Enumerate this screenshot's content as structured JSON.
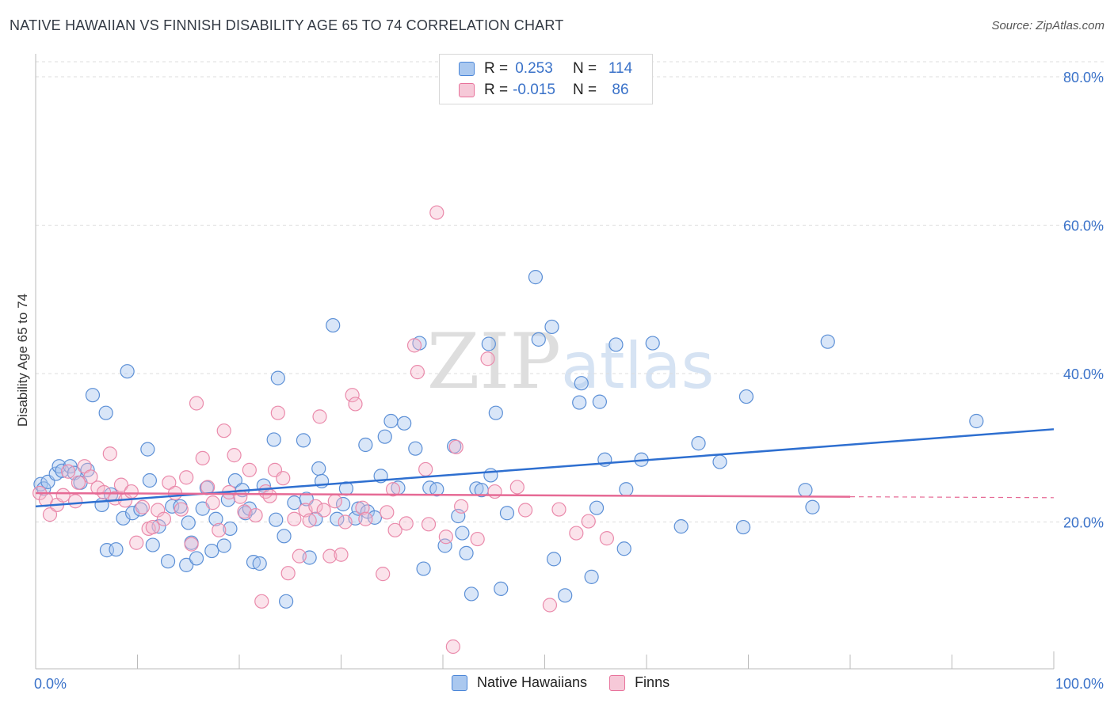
{
  "title": "NATIVE HAWAIIAN VS FINNISH DISABILITY AGE 65 TO 74 CORRELATION CHART",
  "source": "Source: ZipAtlas.com",
  "colors": {
    "blue": "#4a86d8",
    "blue_fill": "#aac8ef",
    "pink": "#e8729b",
    "pink_fill": "#f6b9cd",
    "axis_text": "#3a72c9"
  },
  "legend": {
    "row1": {
      "r_label": "R =",
      "r_value": "0.253",
      "n_label": "N =",
      "n_value": "114"
    },
    "row2": {
      "r_label": "R =",
      "r_value": "-0.015",
      "n_label": "N =",
      "n_value": "86"
    }
  },
  "bottom_legend": {
    "series1": "Native Hawaiians",
    "series2": "Finns"
  },
  "chart_data": {
    "type": "scatter",
    "title": "NATIVE HAWAIIAN VS FINNISH DISABILITY AGE 65 TO 74 CORRELATION CHART",
    "xlabel": "",
    "ylabel": "Disability Age 65 to 74",
    "xlim": [
      0,
      100
    ],
    "ylim": [
      0,
      80
    ],
    "x_tick_labels": [
      "0.0%",
      "100.0%"
    ],
    "y_ticks": [
      20,
      40,
      60,
      80
    ],
    "y_tick_labels": [
      "20.0%",
      "40.0%",
      "60.0%",
      "80.0%"
    ],
    "grid": true,
    "watermark": "ZIPatlas",
    "series": [
      {
        "name": "Native Hawaiians",
        "color": "#4a86d8",
        "trend": {
          "x": [
            0,
            100
          ],
          "y": [
            22.1,
            32.5
          ]
        },
        "points": [
          [
            0.5,
            25.1
          ],
          [
            0.8,
            24.5
          ],
          [
            1.2,
            25.4
          ],
          [
            2.0,
            26.5
          ],
          [
            2.3,
            27.5
          ],
          [
            2.6,
            26.9
          ],
          [
            3.4,
            27.5
          ],
          [
            3.8,
            26.6
          ],
          [
            4.4,
            25.3
          ],
          [
            5.1,
            27.0
          ],
          [
            5.6,
            37.1
          ],
          [
            6.5,
            22.3
          ],
          [
            6.9,
            34.7
          ],
          [
            7.0,
            16.2
          ],
          [
            7.4,
            23.7
          ],
          [
            7.9,
            16.3
          ],
          [
            8.6,
            20.5
          ],
          [
            9.0,
            40.3
          ],
          [
            9.5,
            21.2
          ],
          [
            10.3,
            21.7
          ],
          [
            11.0,
            29.8
          ],
          [
            11.2,
            25.6
          ],
          [
            11.5,
            16.9
          ],
          [
            12.1,
            19.4
          ],
          [
            13.0,
            14.7
          ],
          [
            13.4,
            22.1
          ],
          [
            14.2,
            22.1
          ],
          [
            14.8,
            14.2
          ],
          [
            15.0,
            19.9
          ],
          [
            15.3,
            17.2
          ],
          [
            15.8,
            15.1
          ],
          [
            16.4,
            21.8
          ],
          [
            16.8,
            24.6
          ],
          [
            17.3,
            16.1
          ],
          [
            17.7,
            20.4
          ],
          [
            18.5,
            16.8
          ],
          [
            18.9,
            23.0
          ],
          [
            19.1,
            19.1
          ],
          [
            19.6,
            25.6
          ],
          [
            20.3,
            24.3
          ],
          [
            20.6,
            21.2
          ],
          [
            21.0,
            21.8
          ],
          [
            21.4,
            14.6
          ],
          [
            22.0,
            14.4
          ],
          [
            22.4,
            24.9
          ],
          [
            23.4,
            31.1
          ],
          [
            23.6,
            20.3
          ],
          [
            23.8,
            39.4
          ],
          [
            24.4,
            18.1
          ],
          [
            24.6,
            9.3
          ],
          [
            25.4,
            22.6
          ],
          [
            26.3,
            31.0
          ],
          [
            26.6,
            23.1
          ],
          [
            26.9,
            15.2
          ],
          [
            27.5,
            20.4
          ],
          [
            27.8,
            27.2
          ],
          [
            28.1,
            25.5
          ],
          [
            29.2,
            46.5
          ],
          [
            29.6,
            20.4
          ],
          [
            30.2,
            22.4
          ],
          [
            30.5,
            24.5
          ],
          [
            31.4,
            20.5
          ],
          [
            31.7,
            21.8
          ],
          [
            32.4,
            30.4
          ],
          [
            32.6,
            21.4
          ],
          [
            33.3,
            20.6
          ],
          [
            33.9,
            26.2
          ],
          [
            34.3,
            31.5
          ],
          [
            34.9,
            33.6
          ],
          [
            35.6,
            24.6
          ],
          [
            36.2,
            33.3
          ],
          [
            37.3,
            29.9
          ],
          [
            37.7,
            44.1
          ],
          [
            38.1,
            13.7
          ],
          [
            38.7,
            24.6
          ],
          [
            39.4,
            24.4
          ],
          [
            40.2,
            16.8
          ],
          [
            41.1,
            30.2
          ],
          [
            41.5,
            20.8
          ],
          [
            41.9,
            18.5
          ],
          [
            42.3,
            15.8
          ],
          [
            42.8,
            10.3
          ],
          [
            43.3,
            24.5
          ],
          [
            43.8,
            24.3
          ],
          [
            44.5,
            44.0
          ],
          [
            44.7,
            26.3
          ],
          [
            45.2,
            34.7
          ],
          [
            45.7,
            11.0
          ],
          [
            46.3,
            21.2
          ],
          [
            49.1,
            53.0
          ],
          [
            49.4,
            44.6
          ],
          [
            50.7,
            46.3
          ],
          [
            50.9,
            15.0
          ],
          [
            52.0,
            10.1
          ],
          [
            53.4,
            36.1
          ],
          [
            53.6,
            38.7
          ],
          [
            54.6,
            12.6
          ],
          [
            55.1,
            21.9
          ],
          [
            55.4,
            36.2
          ],
          [
            55.9,
            28.4
          ],
          [
            57.0,
            43.9
          ],
          [
            57.8,
            16.4
          ],
          [
            58.0,
            24.4
          ],
          [
            59.5,
            28.4
          ],
          [
            60.6,
            44.1
          ],
          [
            63.4,
            19.4
          ],
          [
            65.1,
            30.6
          ],
          [
            67.2,
            28.1
          ],
          [
            69.5,
            19.3
          ],
          [
            69.8,
            36.9
          ],
          [
            75.6,
            24.3
          ],
          [
            76.3,
            22.0
          ],
          [
            77.8,
            44.3
          ],
          [
            92.4,
            33.6
          ]
        ]
      },
      {
        "name": "Finns",
        "color": "#e8729b",
        "trend": {
          "x": [
            0,
            80
          ],
          "y": [
            23.9,
            23.4
          ]
        },
        "points": [
          [
            0.4,
            23.9
          ],
          [
            1.0,
            23.0
          ],
          [
            1.4,
            21.0
          ],
          [
            2.1,
            22.3
          ],
          [
            2.7,
            23.6
          ],
          [
            3.2,
            26.8
          ],
          [
            3.9,
            22.8
          ],
          [
            4.2,
            25.3
          ],
          [
            4.8,
            27.5
          ],
          [
            5.4,
            26.1
          ],
          [
            6.1,
            24.6
          ],
          [
            6.7,
            24.0
          ],
          [
            7.3,
            29.2
          ],
          [
            7.8,
            23.2
          ],
          [
            8.4,
            25.0
          ],
          [
            8.8,
            22.9
          ],
          [
            9.4,
            24.1
          ],
          [
            9.9,
            17.2
          ],
          [
            10.5,
            22.0
          ],
          [
            11.1,
            19.1
          ],
          [
            11.5,
            19.3
          ],
          [
            12.0,
            21.6
          ],
          [
            12.6,
            20.4
          ],
          [
            13.1,
            25.3
          ],
          [
            13.7,
            23.9
          ],
          [
            14.3,
            21.7
          ],
          [
            14.8,
            26.0
          ],
          [
            15.3,
            17.0
          ],
          [
            15.8,
            36.0
          ],
          [
            16.4,
            28.6
          ],
          [
            16.9,
            24.7
          ],
          [
            17.4,
            22.6
          ],
          [
            18.0,
            18.9
          ],
          [
            18.5,
            32.3
          ],
          [
            19.0,
            24.0
          ],
          [
            19.5,
            29.0
          ],
          [
            20.1,
            23.4
          ],
          [
            20.5,
            21.4
          ],
          [
            21.0,
            27.0
          ],
          [
            21.6,
            20.9
          ],
          [
            22.2,
            9.3
          ],
          [
            22.6,
            24.1
          ],
          [
            23.0,
            23.5
          ],
          [
            23.5,
            27.0
          ],
          [
            23.8,
            34.7
          ],
          [
            24.3,
            25.9
          ],
          [
            24.8,
            13.1
          ],
          [
            25.4,
            20.4
          ],
          [
            25.9,
            15.4
          ],
          [
            26.5,
            21.6
          ],
          [
            26.9,
            20.2
          ],
          [
            27.5,
            22.1
          ],
          [
            27.9,
            34.2
          ],
          [
            28.3,
            21.6
          ],
          [
            28.9,
            15.4
          ],
          [
            29.4,
            22.8
          ],
          [
            30.0,
            15.6
          ],
          [
            30.4,
            20.0
          ],
          [
            31.1,
            37.1
          ],
          [
            31.4,
            35.9
          ],
          [
            32.1,
            21.9
          ],
          [
            32.4,
            20.4
          ],
          [
            34.1,
            13.0
          ],
          [
            34.5,
            21.3
          ],
          [
            35.1,
            24.4
          ],
          [
            35.3,
            18.9
          ],
          [
            36.4,
            19.8
          ],
          [
            37.2,
            43.8
          ],
          [
            37.5,
            40.2
          ],
          [
            38.3,
            27.1
          ],
          [
            38.6,
            19.7
          ],
          [
            39.4,
            61.7
          ],
          [
            40.3,
            18.0
          ],
          [
            41.0,
            3.2
          ],
          [
            41.3,
            30.1
          ],
          [
            41.8,
            22.1
          ],
          [
            43.4,
            17.7
          ],
          [
            44.4,
            42.0
          ],
          [
            45.1,
            24.1
          ],
          [
            47.3,
            24.7
          ],
          [
            48.1,
            21.6
          ],
          [
            50.5,
            8.8
          ],
          [
            51.4,
            21.7
          ],
          [
            53.1,
            18.5
          ],
          [
            54.3,
            20.1
          ],
          [
            56.1,
            17.8
          ]
        ]
      }
    ]
  }
}
